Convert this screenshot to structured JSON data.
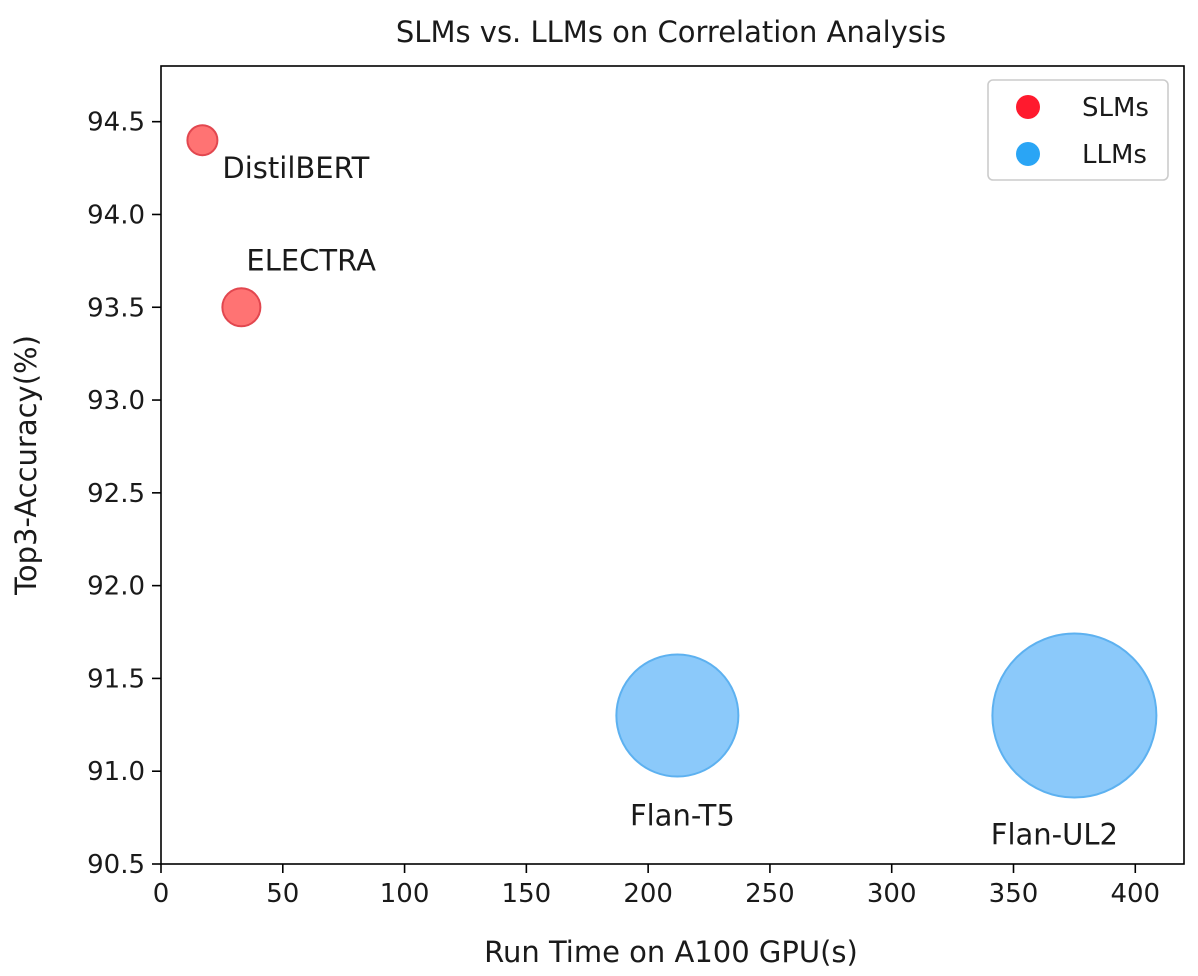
{
  "chart_data": {
    "type": "scatter",
    "title": "SLMs vs. LLMs on Correlation Analysis",
    "xlabel": "Run Time on A100 GPU(s)",
    "ylabel": "Top3-Accuracy(%)",
    "xlim": [
      0,
      420
    ],
    "ylim": [
      90.5,
      94.8
    ],
    "xticks": [
      0,
      50,
      100,
      150,
      200,
      250,
      300,
      350,
      400
    ],
    "yticks": [
      90.5,
      91.0,
      91.5,
      92.0,
      92.5,
      93.0,
      93.5,
      94.0,
      94.5
    ],
    "grid": false,
    "legend_position": "top-right",
    "series": [
      {
        "name": "SLMs",
        "color": "#ff1a2e",
        "points": [
          {
            "label": "DistilBERT",
            "x": 17,
            "y": 94.4
          },
          {
            "label": "ELECTRA",
            "x": 33,
            "y": 93.5
          }
        ]
      },
      {
        "name": "LLMs",
        "color": "#2aa5f5",
        "points": [
          {
            "label": "Flan-T5",
            "x": 212,
            "y": 91.3
          },
          {
            "label": "Flan-UL2",
            "x": 375,
            "y": 91.3
          }
        ]
      }
    ]
  }
}
